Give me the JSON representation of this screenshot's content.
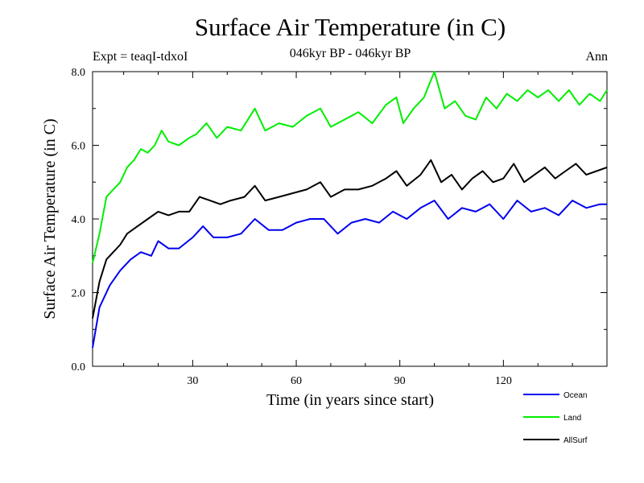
{
  "chart_data": {
    "type": "line",
    "title": "Surface Air Temperature (in C)",
    "subtitle": "046kyr BP - 046kyr BP",
    "experiment_label": "Expt = teaqI-tdxoI",
    "period_label": "Ann",
    "xlabel": "Time (in years since start)",
    "ylabel": "Surface Air Temperature (in C)",
    "xlim": [
      1,
      150
    ],
    "ylim": [
      0,
      8
    ],
    "xticks": [
      30,
      60,
      90,
      120
    ],
    "xtick_labels": [
      "30",
      "60",
      "90",
      "120"
    ],
    "yticks": [
      0,
      2,
      4,
      6,
      8
    ],
    "ytick_labels": [
      "0.0",
      "2.0",
      "4.0",
      "6.0",
      "8.0"
    ],
    "legend_position": "bottom-right",
    "series": [
      {
        "name": "Ocean",
        "color": "#0000ee",
        "x": [
          1,
          3,
          6,
          9,
          12,
          15,
          18,
          20,
          23,
          26,
          30,
          33,
          36,
          40,
          44,
          48,
          52,
          56,
          60,
          64,
          68,
          72,
          76,
          80,
          84,
          88,
          92,
          96,
          100,
          104,
          108,
          112,
          116,
          120,
          124,
          128,
          132,
          136,
          140,
          144,
          148,
          150
        ],
        "values": [
          0.5,
          1.6,
          2.2,
          2.6,
          2.9,
          3.1,
          3.0,
          3.4,
          3.2,
          3.2,
          3.5,
          3.8,
          3.5,
          3.5,
          3.6,
          4.0,
          3.7,
          3.7,
          3.9,
          4.0,
          4.0,
          3.6,
          3.9,
          4.0,
          3.9,
          4.2,
          4.0,
          4.3,
          4.5,
          4.0,
          4.3,
          4.2,
          4.4,
          4.0,
          4.5,
          4.2,
          4.3,
          4.1,
          4.5,
          4.3,
          4.4,
          4.4
        ]
      },
      {
        "name": "Land",
        "color": "#00ee00",
        "x": [
          1,
          3,
          5,
          7,
          9,
          11,
          13,
          15,
          17,
          19,
          21,
          23,
          26,
          29,
          31,
          34,
          37,
          40,
          44,
          48,
          51,
          55,
          59,
          63,
          67,
          70,
          74,
          78,
          82,
          86,
          89,
          91,
          94,
          97,
          100,
          103,
          106,
          109,
          112,
          115,
          118,
          121,
          124,
          127,
          130,
          133,
          136,
          139,
          142,
          145,
          148,
          150
        ],
        "values": [
          2.8,
          3.6,
          4.6,
          4.8,
          5.0,
          5.4,
          5.6,
          5.9,
          5.8,
          6.0,
          6.4,
          6.1,
          6.0,
          6.2,
          6.3,
          6.6,
          6.2,
          6.5,
          6.4,
          7.0,
          6.4,
          6.6,
          6.5,
          6.8,
          7.0,
          6.5,
          6.7,
          6.9,
          6.6,
          7.1,
          7.3,
          6.6,
          7.0,
          7.3,
          8.0,
          7.0,
          7.2,
          6.8,
          6.7,
          7.3,
          7.0,
          7.4,
          7.2,
          7.5,
          7.3,
          7.5,
          7.2,
          7.5,
          7.1,
          7.4,
          7.2,
          7.5
        ]
      },
      {
        "name": "AllSurf",
        "color": "#000000",
        "x": [
          1,
          3,
          5,
          7,
          9,
          11,
          14,
          17,
          20,
          23,
          26,
          29,
          32,
          35,
          38,
          41,
          45,
          48,
          51,
          55,
          59,
          63,
          67,
          70,
          74,
          78,
          82,
          86,
          89,
          92,
          96,
          99,
          102,
          105,
          108,
          111,
          114,
          117,
          120,
          123,
          126,
          129,
          132,
          135,
          138,
          141,
          144,
          147,
          150
        ],
        "values": [
          1.3,
          2.3,
          2.9,
          3.1,
          3.3,
          3.6,
          3.8,
          4.0,
          4.2,
          4.1,
          4.2,
          4.2,
          4.6,
          4.5,
          4.4,
          4.5,
          4.6,
          4.9,
          4.5,
          4.6,
          4.7,
          4.8,
          5.0,
          4.6,
          4.8,
          4.8,
          4.9,
          5.1,
          5.3,
          4.9,
          5.2,
          5.6,
          5.0,
          5.2,
          4.8,
          5.1,
          5.3,
          5.0,
          5.1,
          5.5,
          5.0,
          5.2,
          5.4,
          5.1,
          5.3,
          5.5,
          5.2,
          5.3,
          5.4
        ]
      }
    ]
  }
}
